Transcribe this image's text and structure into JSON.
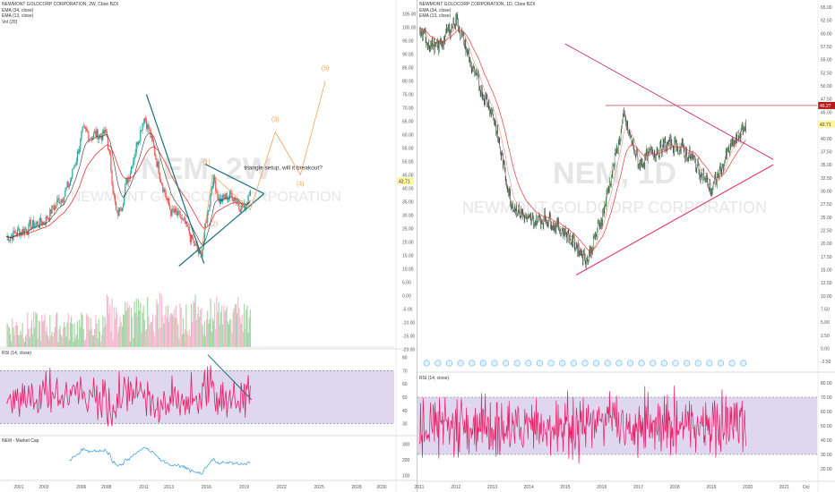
{
  "left": {
    "title": "NEWMONT GOLDCORP CORPORATION, 2W, Cboe BZX",
    "indicators": [
      "EMA (34, close)",
      "EMA (13, close)",
      "Vol (20)"
    ],
    "watermark_symbol": "NEM, 2W",
    "watermark_name": "NEWMONT GOLDCORP CORPORATION",
    "last_price": "42.71",
    "price_axis": [
      "105.00",
      "100.00",
      "95.00",
      "90.00",
      "85.00",
      "80.00",
      "75.00",
      "70.00",
      "65.00",
      "60.00",
      "55.00",
      "50.00",
      "45.00",
      "40.00",
      "35.00",
      "30.00",
      "25.00",
      "20.00",
      "15.00",
      "10.00",
      "5.00",
      "0.00",
      "-5.00",
      "-10.00",
      "-15.00",
      "-20.00"
    ],
    "annotation": "triangle setup, will it breakout?",
    "wave_labels": [
      "(1)",
      "(2)",
      "(3)",
      "(4)",
      "(5)"
    ],
    "rsi_label": "RSI (14, close)",
    "rsi_axis": [
      "80",
      "70",
      "60",
      "50",
      "40",
      "30"
    ],
    "mcap_label": "NEM - Market Cap",
    "mcap_axis": [
      "300",
      "200",
      "100"
    ],
    "time_axis": [
      "2001",
      "2003",
      "2006",
      "2008",
      "2011",
      "2013",
      "2016",
      "2019",
      "2022",
      "2025",
      "2028",
      "2030"
    ]
  },
  "right": {
    "title": "NEWMONT GOLDCORP CORPORATION, 1D, Cboe BZX",
    "indicators": [
      "EMA (34, close)",
      "EMA (13, close)"
    ],
    "watermark_symbol": "NEM, 1D",
    "watermark_name": "NEWMONT GOLDCORP CORPORATION",
    "last_price": "42.71",
    "resistance_price": "46.27",
    "price_axis": [
      "65.00",
      "62.50",
      "60.00",
      "57.50",
      "55.00",
      "52.50",
      "50.00",
      "47.50",
      "45.00",
      "42.50",
      "40.00",
      "37.50",
      "35.00",
      "32.50",
      "30.00",
      "27.50",
      "25.00",
      "22.50",
      "20.00",
      "17.50",
      "15.00",
      "12.50",
      "10.00",
      "7.50",
      "5.00",
      "2.50",
      "0.00",
      "-2.50"
    ],
    "rsi_label": "RSI (14, close)",
    "rsi_axis": [
      "80.00",
      "70.00",
      "60.00",
      "50.00",
      "40.00",
      "30.00",
      "20.00"
    ],
    "time_axis": [
      "2011",
      "2012",
      "2013",
      "2014",
      "2015",
      "2016",
      "2017",
      "2018",
      "2019",
      "2020",
      "2021",
      "Oct"
    ]
  },
  "colors": {
    "up": "#26a69a",
    "down": "#ef5350",
    "ema_red": "#e53935",
    "ema_black": "#000000",
    "trendline_teal": "#1a6f7f",
    "trendline_pink": "#e8336e",
    "wave_orange": "#f5a25d",
    "rsi_line": "#e91e63",
    "rsi_band": "#d1c4e9",
    "mcap_line": "#4aa3df",
    "price_tag": "#fff59d",
    "resist_tag": "#b71c1c"
  },
  "chart_data": [
    {
      "type": "line",
      "title": "NEWMONT GOLDCORP CORPORATION, 2W, Cboe BZX",
      "x": [
        2000,
        2003,
        2005,
        2006,
        2008,
        2008.8,
        2011,
        2012,
        2013,
        2014,
        2015.5,
        2016.5,
        2017,
        2018,
        2019,
        2019.5
      ],
      "series": [
        {
          "name": "NEM",
          "values": [
            22,
            28,
            41,
            60,
            60,
            28,
            68,
            50,
            32,
            28,
            14,
            45,
            35,
            38,
            32,
            42.71
          ]
        }
      ],
      "projection": {
        "x": [
          2015.5,
          2016.5,
          2019.5,
          2021.5,
          2023.5,
          2025.5
        ],
        "values": [
          14,
          45,
          32,
          61,
          45,
          80
        ],
        "labels": [
          "(1)",
          "(2)",
          "(3)",
          "(4)",
          "(5)"
        ]
      },
      "ylim": [
        -20,
        105
      ]
    },
    {
      "type": "line",
      "title": "NEWMONT GOLDCORP CORPORATION, 1D, Cboe BZX",
      "x": [
        2011,
        2011.5,
        2012,
        2012.5,
        2013,
        2013.5,
        2014,
        2014.5,
        2015,
        2015.6,
        2016,
        2016.6,
        2017,
        2017.5,
        2018,
        2018.5,
        2019,
        2019.5,
        2019.95
      ],
      "series": [
        {
          "name": "NEM",
          "values": [
            60,
            57,
            63,
            52,
            45,
            28,
            24,
            25,
            22,
            17,
            25,
            44,
            35,
            38,
            39,
            36,
            30,
            38,
            42.71
          ]
        }
      ],
      "ylim": [
        -2.5,
        65
      ]
    }
  ]
}
